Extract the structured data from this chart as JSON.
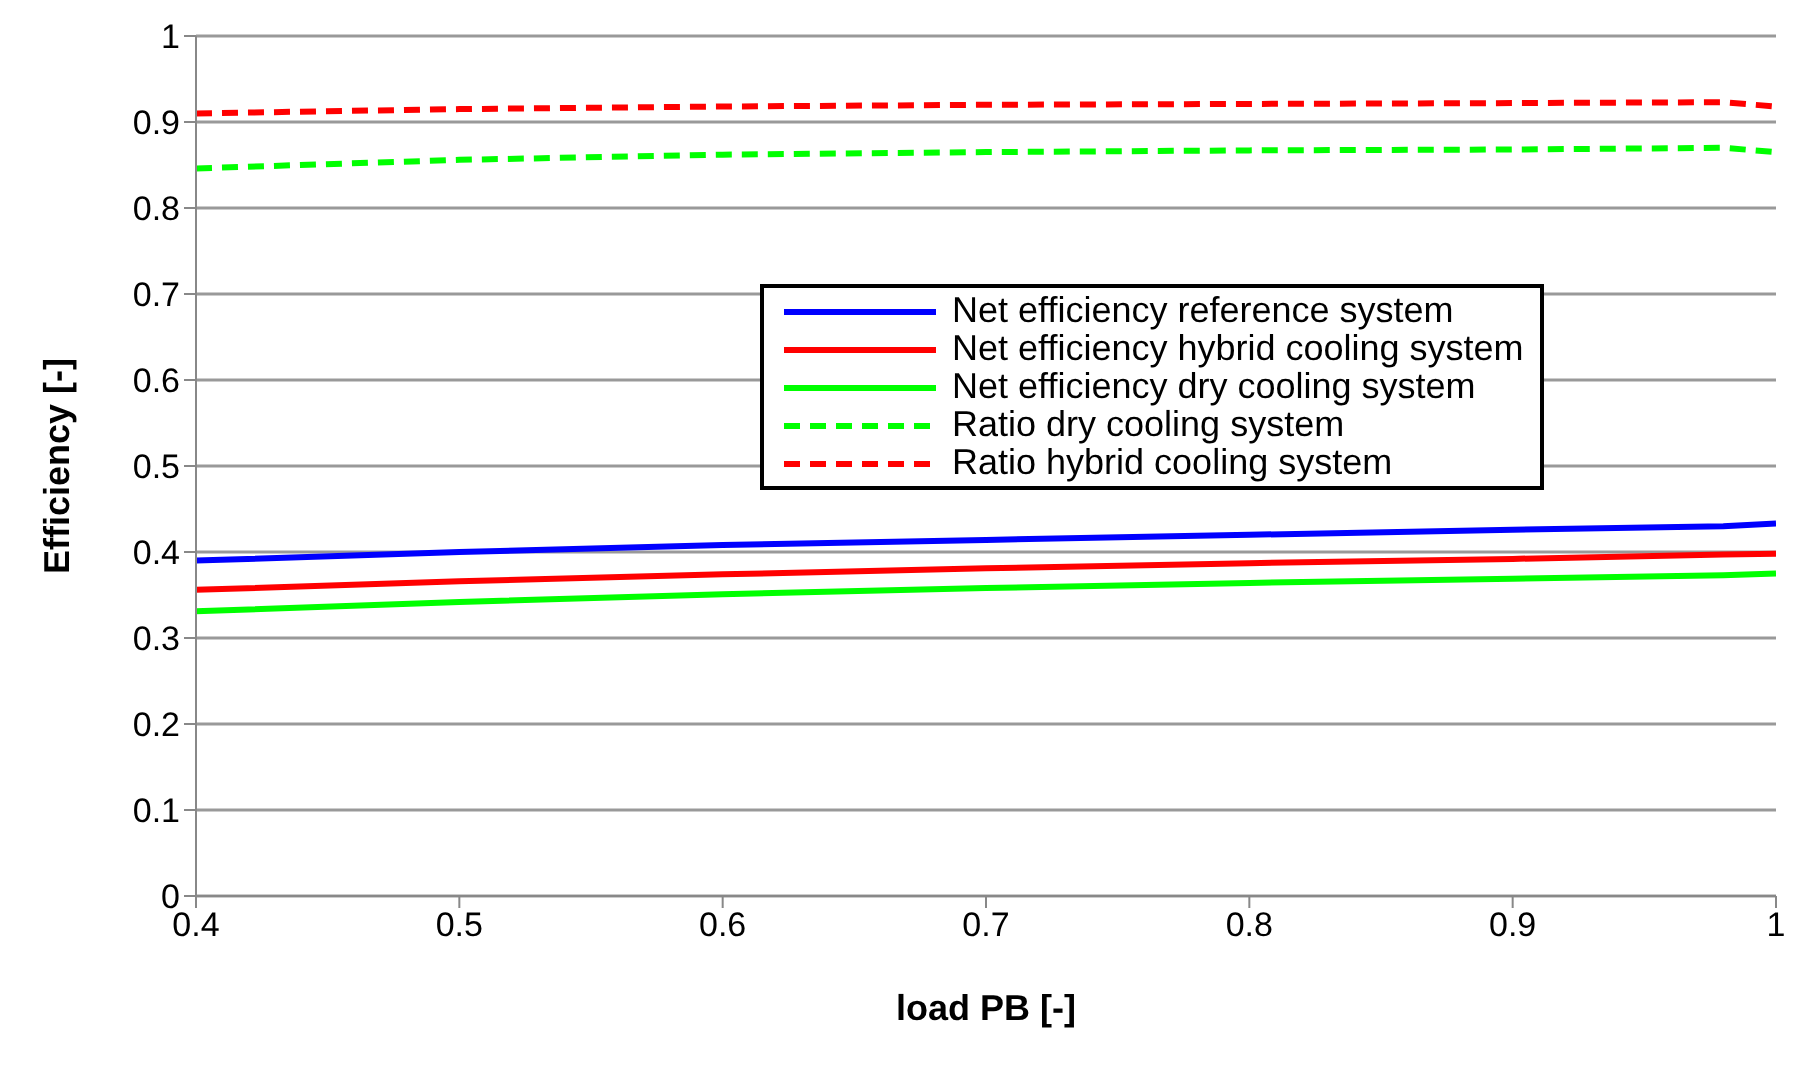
{
  "chart_data": {
    "type": "line",
    "xlabel": "load PB [-]",
    "ylabel": "Efficiency [-]",
    "x": [
      0.4,
      0.5,
      0.6,
      0.7,
      0.8,
      0.9,
      0.98,
      1.0
    ],
    "xlim": [
      0.4,
      1
    ],
    "xticks": [
      0.4,
      0.5,
      0.6,
      0.7,
      0.8,
      0.9,
      1
    ],
    "ylim": [
      0,
      1
    ],
    "yticks": [
      0,
      0.1,
      0.2,
      0.3,
      0.4,
      0.5,
      0.6,
      0.7,
      0.8,
      0.9,
      1
    ],
    "grid": "y",
    "legend": "right",
    "marker": "none",
    "series": [
      {
        "name": "Net efficiency reference system",
        "color": "#0000ff",
        "line_style": "solid",
        "values": [
          0.39,
          0.4,
          0.408,
          0.414,
          0.42,
          0.426,
          0.43,
          0.433
        ]
      },
      {
        "name": "Net efficiency hybrid cooling system",
        "color": "#ff0000",
        "line_style": "solid",
        "values": [
          0.356,
          0.366,
          0.374,
          0.381,
          0.387,
          0.392,
          0.397,
          0.398
        ]
      },
      {
        "name": "Net efficiency dry cooling system",
        "color": "#00ff00",
        "line_style": "solid",
        "values": [
          0.331,
          0.342,
          0.351,
          0.358,
          0.364,
          0.369,
          0.373,
          0.375
        ]
      },
      {
        "name": "Ratio dry cooling system",
        "color": "#00ff00",
        "line_style": "dashed",
        "values": [
          0.846,
          0.856,
          0.862,
          0.865,
          0.867,
          0.868,
          0.87,
          0.865
        ]
      },
      {
        "name": "Ratio hybrid cooling system",
        "color": "#ff0000",
        "line_style": "dashed",
        "values": [
          0.91,
          0.915,
          0.918,
          0.92,
          0.921,
          0.922,
          0.923,
          0.918
        ]
      }
    ]
  }
}
